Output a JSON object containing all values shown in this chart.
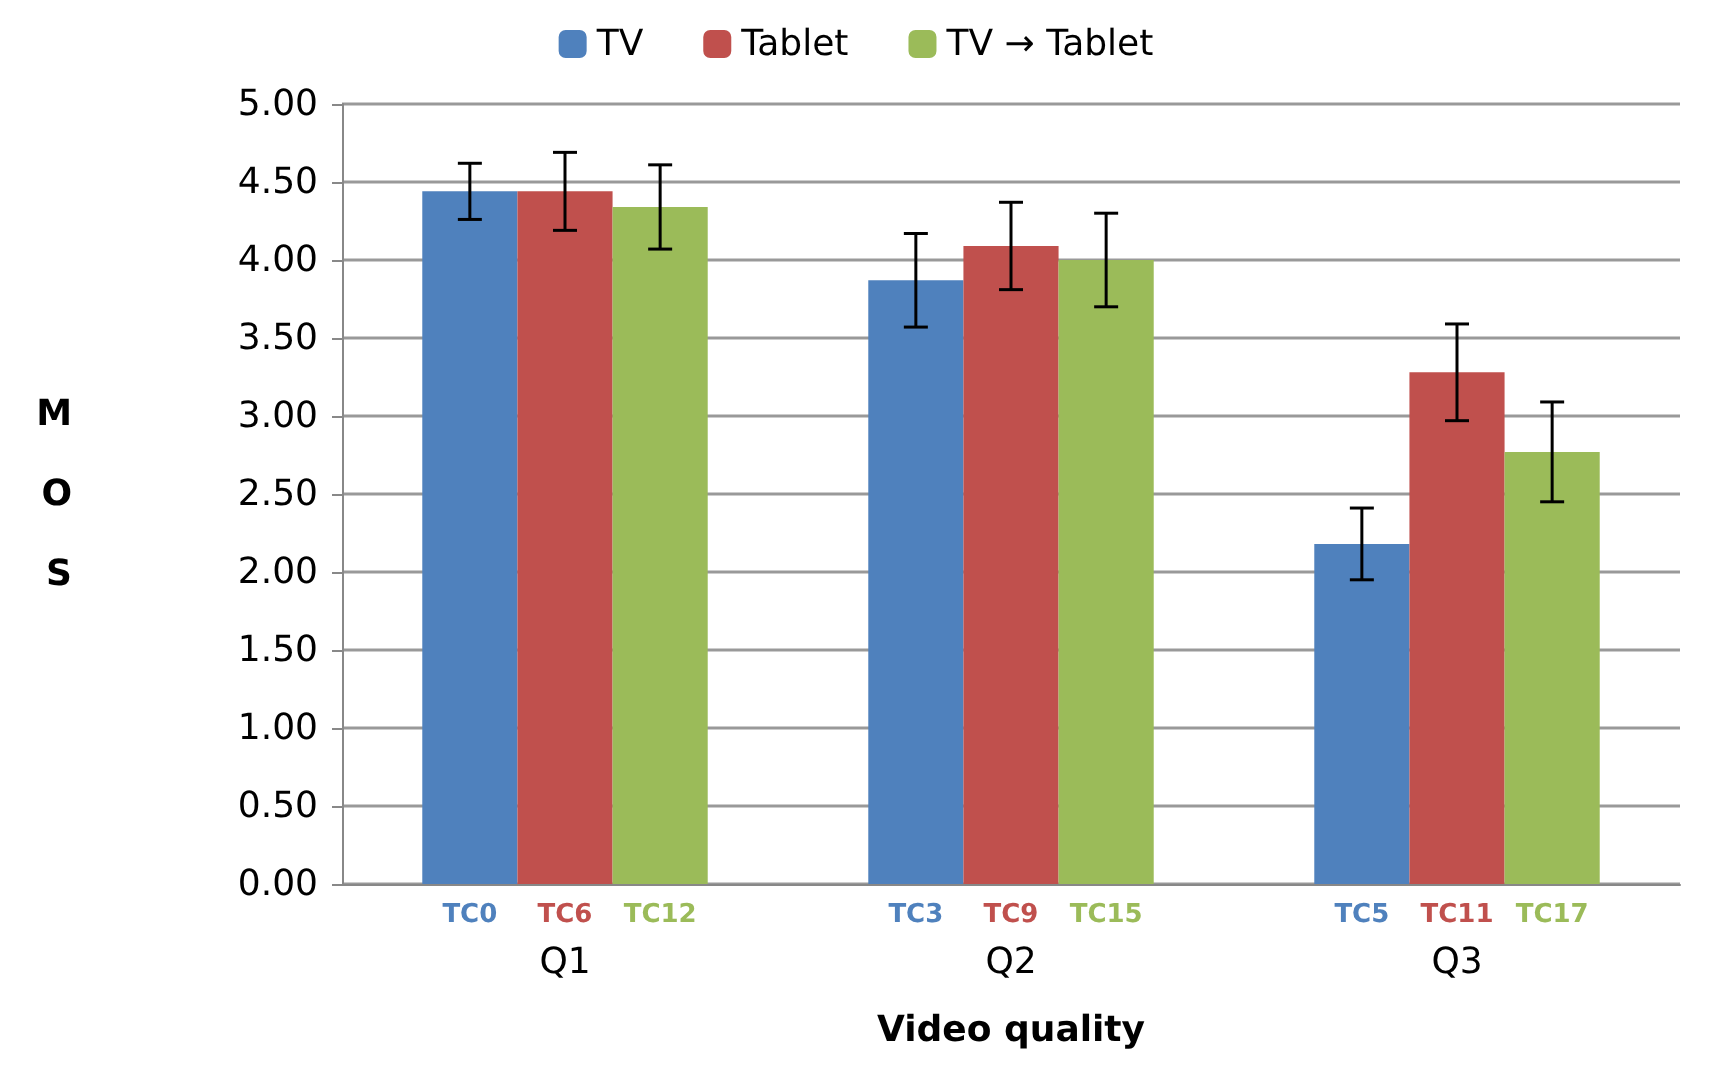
{
  "chart_data": {
    "type": "bar",
    "xlabel": "Video quality",
    "ylabel": "MOS",
    "categories": [
      "Q1",
      "Q2",
      "Q3"
    ],
    "series": [
      {
        "name": "TV",
        "color": "#4f81bd",
        "values": [
          4.44,
          3.87,
          2.18
        ],
        "errors": [
          0.18,
          0.3,
          0.23
        ],
        "value_labels": [
          "TC0",
          "TC3",
          "TC5"
        ]
      },
      {
        "name": "Tablet",
        "color": "#c0504d",
        "values": [
          4.44,
          4.09,
          3.28
        ],
        "errors": [
          0.25,
          0.28,
          0.31
        ],
        "value_labels": [
          "TC6",
          "TC9",
          "TC11"
        ]
      },
      {
        "name": "TV → Tablet",
        "color": "#9bbb59",
        "values": [
          4.34,
          4.0,
          2.77
        ],
        "errors": [
          0.27,
          0.3,
          0.32
        ],
        "value_labels": [
          "TC12",
          "TC15",
          "TC17"
        ]
      }
    ],
    "ylim": [
      0,
      5
    ],
    "yticks": [
      {
        "value": 0,
        "label": "0.00"
      },
      {
        "value": 0.5,
        "label": "0.50"
      },
      {
        "value": 1,
        "label": "1.00"
      },
      {
        "value": 1.5,
        "label": "1.50"
      },
      {
        "value": 2,
        "label": "2.00"
      },
      {
        "value": 2.5,
        "label": "2.50"
      },
      {
        "value": 3,
        "label": "3.00"
      },
      {
        "value": 3.5,
        "label": "3.50"
      },
      {
        "value": 4,
        "label": "4.00"
      },
      {
        "value": 4.5,
        "label": "4.50"
      },
      {
        "value": 5,
        "label": "5.00"
      }
    ],
    "grid": "y",
    "legend": "top"
  }
}
